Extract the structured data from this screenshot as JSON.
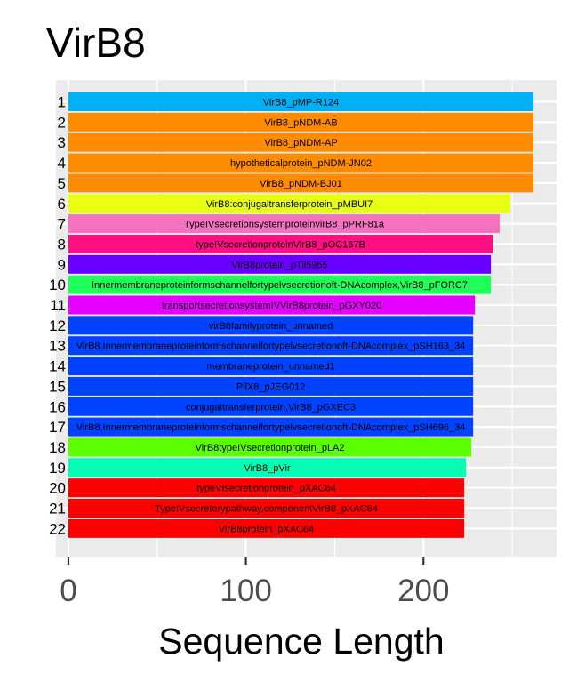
{
  "chart_data": {
    "type": "bar",
    "orientation": "horizontal",
    "title": "VirB8",
    "xlabel": "Sequence Length",
    "ylabel": "",
    "xlim": [
      -7,
      275
    ],
    "x_ticks": [
      0,
      100,
      200
    ],
    "grid": true,
    "legend": "none",
    "categories": [
      "1",
      "2",
      "3",
      "4",
      "5",
      "6",
      "7",
      "8",
      "9",
      "10",
      "11",
      "12",
      "13",
      "14",
      "15",
      "16",
      "17",
      "18",
      "19",
      "20",
      "21",
      "22"
    ],
    "values": [
      262,
      262,
      262,
      262,
      262,
      249,
      243,
      239,
      238,
      238,
      229,
      228,
      228,
      228,
      228,
      228,
      228,
      227,
      224,
      223,
      223,
      223
    ],
    "bar_labels": [
      "VirB8_pMP-R124",
      "VirB8_pNDM-AB",
      "VirB8_pNDM-AP",
      "hypotheticalprotein_pNDM-JN02",
      "VirB8_pNDM-BJ01",
      "VirB8:conjugaltransferprotein_pMBUI7",
      "TypeIVsecretionsystemproteinvirB8_pPRF81a",
      "typeIVsecretionproteinVirB8_pOC167B",
      "VirB8protein_pTil5955",
      "Innermembraneproteinformschannelfortypelvsecretionoft-DNAcomplex,VirB8_pFORC7",
      "transportsecretionsystemIVVirB8protein_pGXY020",
      "virB8familyprotein_unnamed",
      "VirB8,Innermembraneproteinformschannelfortypelvsecretionoft-DNAcomplex_pSH163_34",
      "membraneprotein_unnamed1",
      "PilX8_pJEG012",
      "conjugaltransferprotein,VirB8_pGXEC3",
      "VirB8,Innermembraneproteinformschannelfortypelvsecretionoft-DNAcomplex_pSH696_34",
      "VirB8typeIVsecretionprotein_pLA2",
      "VirB8_pVir",
      "typeVIsecretionprotein_pXAC64",
      "TypeIVsecretorypathway,componentVirB8_pXAC64",
      "VirB8protein_pXAC64"
    ],
    "colors": [
      "#00B0F6",
      "#FF8C00",
      "#FF8C00",
      "#FF8C00",
      "#FF8C00",
      "#E8FF12",
      "#F472BF",
      "#FF0F82",
      "#6A00FF",
      "#1EFF5A",
      "#E500FF",
      "#0042FF",
      "#0042FF",
      "#0042FF",
      "#0042FF",
      "#0042FF",
      "#0042FF",
      "#5CFF00",
      "#00FFB3",
      "#FF0000",
      "#FF0000",
      "#FF0000"
    ],
    "panel_color": "#EBEBEB",
    "grid_color": "#FFFFFF"
  }
}
